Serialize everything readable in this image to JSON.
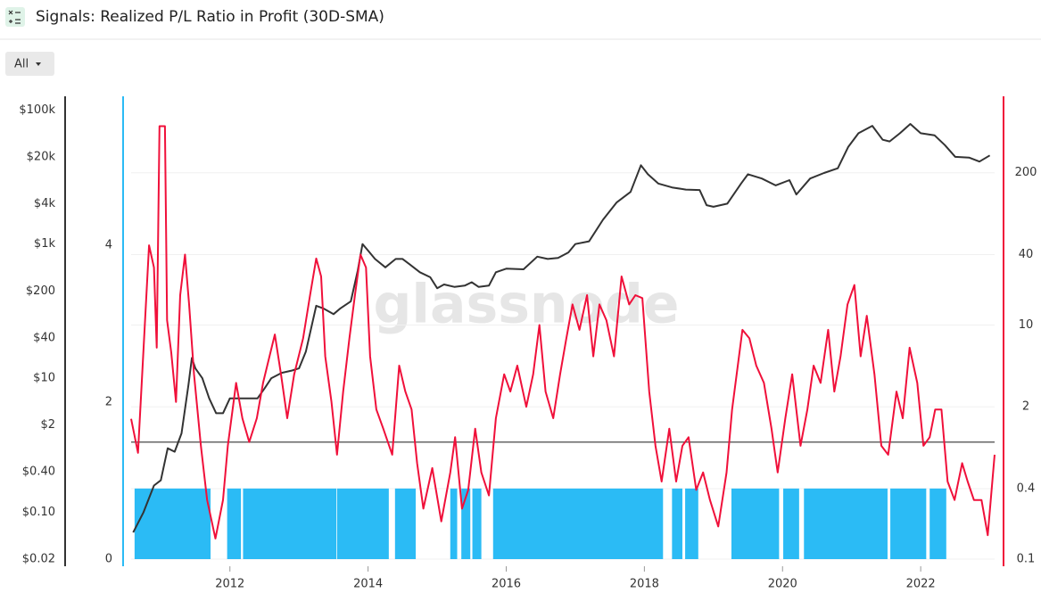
{
  "header": {
    "title": "Signals: Realized P/L Ratio in Profit (30D-SMA)",
    "range_button": "All"
  },
  "chart_data": {
    "type": "line",
    "watermark": "glassnode",
    "xlim": [
      2010.57,
      2023.07
    ],
    "xticks": [
      2012,
      2014,
      2016,
      2018,
      2020,
      2022
    ],
    "ylim": [
      0.02,
      160000
    ],
    "log_y": true,
    "yticks": [
      {
        "value": 0.02,
        "label": "$0.02"
      },
      {
        "value": 0.1,
        "label": "$0.10"
      },
      {
        "value": 0.4,
        "label": "$0.40"
      },
      {
        "value": 2,
        "label": "$2"
      },
      {
        "value": 10,
        "label": "$10"
      },
      {
        "value": 40,
        "label": "$40"
      },
      {
        "value": 200,
        "label": "$200"
      },
      {
        "value": 1000,
        "label": "$1k"
      },
      {
        "value": 4000,
        "label": "$4k"
      },
      {
        "value": 20000,
        "label": "$20k"
      },
      {
        "value": 100000,
        "label": "$100k"
      }
    ],
    "y3lim": [
      0,
      5.9
    ],
    "y3ticks": [
      0,
      2,
      4
    ],
    "y2lim": [
      0.1,
      900
    ],
    "log_y2": true,
    "y2ticks": [
      0.1,
      0.4,
      2,
      10,
      40,
      200
    ],
    "grid": true,
    "threshold": 1,
    "threshold_color": "#666666",
    "price": {
      "color": "#333333",
      "x": [
        2010.6,
        2010.75,
        2010.9,
        2011.0,
        2011.1,
        2011.2,
        2011.3,
        2011.4,
        2011.45,
        2011.5,
        2011.6,
        2011.7,
        2011.8,
        2011.9,
        2012.0,
        2012.1,
        2012.25,
        2012.4,
        2012.5,
        2012.6,
        2012.75,
        2012.9,
        2013.0,
        2013.1,
        2013.25,
        2013.35,
        2013.5,
        2013.6,
        2013.75,
        2013.85,
        2013.92,
        2014.0,
        2014.1,
        2014.25,
        2014.4,
        2014.5,
        2014.6,
        2014.75,
        2014.9,
        2015.0,
        2015.1,
        2015.25,
        2015.4,
        2015.5,
        2015.6,
        2015.75,
        2015.85,
        2016.0,
        2016.25,
        2016.45,
        2016.6,
        2016.75,
        2016.9,
        2017.0,
        2017.2,
        2017.4,
        2017.6,
        2017.8,
        2017.95,
        2018.05,
        2018.2,
        2018.4,
        2018.6,
        2018.8,
        2018.9,
        2019.0,
        2019.2,
        2019.4,
        2019.5,
        2019.7,
        2019.9,
        2020.1,
        2020.2,
        2020.4,
        2020.6,
        2020.8,
        2020.95,
        2021.1,
        2021.3,
        2021.45,
        2021.55,
        2021.7,
        2021.85,
        2022.0,
        2022.2,
        2022.35,
        2022.5,
        2022.7,
        2022.85,
        2023.0
      ],
      "values": [
        0.05,
        0.1,
        0.25,
        0.3,
        0.9,
        0.8,
        1.5,
        8,
        20,
        14,
        10,
        5,
        3,
        3,
        5,
        5,
        5,
        5,
        7,
        10,
        12,
        13,
        14,
        25,
        120,
        110,
        90,
        110,
        140,
        400,
        1000,
        800,
        600,
        450,
        600,
        600,
        500,
        380,
        320,
        220,
        250,
        230,
        240,
        270,
        230,
        240,
        380,
        430,
        420,
        650,
        600,
        620,
        750,
        1000,
        1100,
        2300,
        4200,
        6000,
        15000,
        11000,
        8000,
        7000,
        6500,
        6400,
        3800,
        3600,
        4000,
        8000,
        11000,
        9500,
        7500,
        9000,
        5500,
        9500,
        11500,
        13500,
        28000,
        45000,
        58000,
        36000,
        34000,
        45000,
        62000,
        45000,
        42000,
        30000,
        20000,
        19500,
        17000,
        21000
      ]
    },
    "ratio": {
      "color": "#f0103a",
      "x": [
        2010.57,
        2010.67,
        2010.73,
        2010.83,
        2010.9,
        2010.94,
        2010.98,
        2011.06,
        2011.09,
        2011.15,
        2011.22,
        2011.28,
        2011.35,
        2011.41,
        2011.48,
        2011.58,
        2011.67,
        2011.79,
        2011.9,
        2011.97,
        2012.09,
        2012.18,
        2012.28,
        2012.39,
        2012.48,
        2012.54,
        2012.65,
        2012.74,
        2012.83,
        2012.93,
        2013.06,
        2013.16,
        2013.25,
        2013.32,
        2013.38,
        2013.47,
        2013.55,
        2013.64,
        2013.73,
        2013.81,
        2013.89,
        2013.97,
        2014.03,
        2014.12,
        2014.22,
        2014.35,
        2014.45,
        2014.54,
        2014.63,
        2014.71,
        2014.8,
        2014.93,
        2015.06,
        2015.19,
        2015.26,
        2015.36,
        2015.45,
        2015.55,
        2015.64,
        2015.75,
        2015.85,
        2015.97,
        2016.06,
        2016.16,
        2016.29,
        2016.39,
        2016.48,
        2016.57,
        2016.68,
        2016.78,
        2016.87,
        2016.96,
        2017.06,
        2017.17,
        2017.26,
        2017.35,
        2017.45,
        2017.56,
        2017.67,
        2017.78,
        2017.87,
        2017.97,
        2018.07,
        2018.16,
        2018.25,
        2018.36,
        2018.46,
        2018.55,
        2018.64,
        2018.75,
        2018.85,
        2018.95,
        2019.07,
        2019.19,
        2019.27,
        2019.42,
        2019.52,
        2019.62,
        2019.73,
        2019.84,
        2019.93,
        2020.04,
        2020.14,
        2020.26,
        2020.36,
        2020.45,
        2020.55,
        2020.66,
        2020.75,
        2020.84,
        2020.94,
        2021.04,
        2021.13,
        2021.22,
        2021.33,
        2021.43,
        2021.53,
        2021.65,
        2021.74,
        2021.84,
        2021.95,
        2022.04,
        2022.13,
        2022.21,
        2022.3,
        2022.39,
        2022.49,
        2022.6,
        2022.68,
        2022.77,
        2022.88,
        2022.97,
        2023.07
      ],
      "values": [
        1.58,
        0.81,
        3.8,
        48,
        31,
        6.4,
        500,
        500,
        11,
        5.9,
        2.2,
        18,
        40,
        15,
        3.8,
        0.93,
        0.32,
        0.15,
        0.32,
        0.93,
        3.2,
        1.6,
        1.0,
        1.6,
        3.2,
        4.5,
        8.3,
        3.8,
        1.6,
        3.8,
        7.7,
        18,
        37,
        26,
        5.4,
        2.2,
        0.78,
        2.7,
        7.7,
        18,
        40,
        31,
        5.4,
        1.9,
        1.3,
        0.78,
        4.5,
        2.7,
        1.9,
        0.66,
        0.27,
        0.6,
        0.21,
        0.55,
        1.1,
        0.27,
        0.39,
        1.3,
        0.55,
        0.35,
        1.6,
        3.8,
        2.7,
        4.5,
        2.0,
        3.8,
        10,
        2.7,
        1.6,
        3.8,
        7.7,
        15,
        9.1,
        18,
        5.4,
        15,
        11,
        5.4,
        26,
        15,
        18,
        17,
        2.7,
        0.93,
        0.46,
        1.3,
        0.46,
        0.93,
        1.1,
        0.39,
        0.55,
        0.32,
        0.19,
        0.55,
        1.9,
        9.1,
        7.7,
        4.5,
        3.2,
        1.3,
        0.55,
        1.6,
        3.8,
        0.93,
        1.9,
        4.5,
        3.2,
        9.1,
        2.7,
        5.4,
        15,
        22,
        5.4,
        12,
        3.8,
        0.93,
        0.78,
        2.7,
        1.6,
        6.4,
        3.2,
        0.93,
        1.1,
        1.9,
        1.9,
        0.46,
        0.32,
        0.66,
        0.46,
        0.32,
        0.32,
        0.16,
        0.78
      ]
    },
    "signal": {
      "color": "#2bbbf5",
      "periods": [
        {
          "start": 2010.62,
          "end": 2011.72,
          "value": 0.9
        },
        {
          "start": 2011.96,
          "end": 2012.16,
          "value": 0.9
        },
        {
          "start": 2012.19,
          "end": 2013.54,
          "value": 0.9
        },
        {
          "start": 2013.55,
          "end": 2014.3,
          "value": 0.9
        },
        {
          "start": 2014.39,
          "end": 2014.69,
          "value": 0.9
        },
        {
          "start": 2015.19,
          "end": 2015.29,
          "value": 0.9
        },
        {
          "start": 2015.35,
          "end": 2015.48,
          "value": 0.9
        },
        {
          "start": 2015.51,
          "end": 2015.64,
          "value": 0.9
        },
        {
          "start": 2015.81,
          "end": 2018.27,
          "value": 0.9
        },
        {
          "start": 2018.4,
          "end": 2018.55,
          "value": 0.9
        },
        {
          "start": 2018.59,
          "end": 2018.78,
          "value": 0.9
        },
        {
          "start": 2019.26,
          "end": 2019.95,
          "value": 0.9
        },
        {
          "start": 2020.01,
          "end": 2020.24,
          "value": 0.9
        },
        {
          "start": 2020.31,
          "end": 2021.52,
          "value": 0.9
        },
        {
          "start": 2021.56,
          "end": 2022.08,
          "value": 0.9
        },
        {
          "start": 2022.13,
          "end": 2022.37,
          "value": 0.9
        }
      ]
    }
  }
}
